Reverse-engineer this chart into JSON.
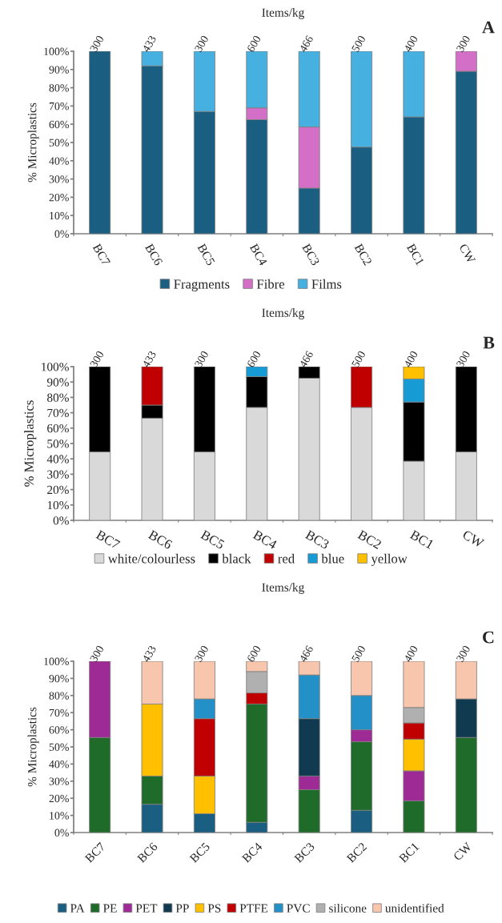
{
  "chart_data": [
    {
      "type": "bar",
      "stacked": true,
      "ylabel": "% Microplastics",
      "x2label": "Items/kg",
      "categories": [
        "BC7",
        "BC6",
        "BC5",
        "BC4",
        "BC3",
        "BC2",
        "BC1",
        "CW"
      ],
      "series": [
        {
          "name": "Fragments",
          "color": "#1a5e82",
          "values": [
            100,
            92,
            67,
            62.5,
            25,
            47.5,
            64,
            89
          ]
        },
        {
          "name": "Fibre",
          "color": "#d36fc6",
          "values": [
            null,
            null,
            null,
            6.5,
            33.5,
            null,
            null,
            11
          ]
        },
        {
          "name": "Films",
          "color": "#46b0e0",
          "values": [
            null,
            8,
            33,
            31,
            41.5,
            52.5,
            36,
            null
          ]
        }
      ],
      "ylim": [
        0,
        100
      ],
      "yticks": [
        {
          "value": 0,
          "label": "0%"
        },
        {
          "value": 10,
          "label": "10%"
        },
        {
          "value": 20,
          "label": "20%"
        },
        {
          "value": 30,
          "label": "30%"
        },
        {
          "value": 40,
          "label": "40%"
        },
        {
          "value": 50,
          "label": "50%"
        },
        {
          "value": 60,
          "label": "60%"
        },
        {
          "value": 70,
          "label": "70%"
        },
        {
          "value": 80,
          "label": "80%"
        },
        {
          "value": 90,
          "label": "90%"
        },
        {
          "value": 100,
          "label": "100%"
        }
      ],
      "grid": false,
      "legend": "bottom",
      "annotations": [
        "A",
        {
          "text": "300",
          "x": "BC7",
          "y": 100
        },
        {
          "text": "433",
          "x": "BC6",
          "y": 100
        },
        {
          "text": "300",
          "x": "BC5",
          "y": 100
        },
        {
          "text": "600",
          "x": "BC4",
          "y": 100
        },
        {
          "text": "466",
          "x": "BC3",
          "y": 100
        },
        {
          "text": "500",
          "x": "BC2",
          "y": 100
        },
        {
          "text": "400",
          "x": "BC1",
          "y": 100
        },
        {
          "text": "300",
          "x": "CW",
          "y": 100
        }
      ]
    },
    {
      "type": "bar",
      "stacked": true,
      "ylabel": "% Microplastics",
      "x2label": "Items/kg",
      "categories": [
        "BC7",
        "BC6",
        "BC5",
        "BC4",
        "BC3",
        "BC2",
        "BC1",
        "CW"
      ],
      "series": [
        {
          "name": "white/colourless",
          "color": "#d9d9d9",
          "values": [
            44.5,
            66.5,
            44.5,
            73.5,
            92.5,
            73.5,
            38.5,
            44.5
          ]
        },
        {
          "name": "black",
          "color": "#000000",
          "values": [
            55.5,
            8.5,
            55.5,
            20,
            7.5,
            null,
            38.5,
            55.5
          ]
        },
        {
          "name": "red",
          "color": "#c00000",
          "values": [
            null,
            25,
            null,
            null,
            null,
            26.5,
            null,
            null
          ]
        },
        {
          "name": "blue",
          "color": "#169bd5",
          "values": [
            null,
            null,
            null,
            6.5,
            null,
            null,
            15,
            null
          ]
        },
        {
          "name": "yellow",
          "color": "#ffc000",
          "values": [
            null,
            null,
            null,
            null,
            null,
            null,
            8,
            null
          ]
        }
      ],
      "ylim": [
        0,
        100
      ],
      "yticks": [
        {
          "value": 0,
          "label": "0%"
        },
        {
          "value": 10,
          "label": "10%"
        },
        {
          "value": 20,
          "label": "20%"
        },
        {
          "value": 30,
          "label": "30%"
        },
        {
          "value": 40,
          "label": "40%"
        },
        {
          "value": 50,
          "label": "50%"
        },
        {
          "value": 60,
          "label": "60%"
        },
        {
          "value": 70,
          "label": "70%"
        },
        {
          "value": 80,
          "label": "80%"
        },
        {
          "value": 90,
          "label": "90%"
        },
        {
          "value": 100,
          "label": "100%"
        }
      ],
      "grid": false,
      "legend": "bottom",
      "annotations": [
        "B",
        {
          "text": "300",
          "x": "BC7",
          "y": 100
        },
        {
          "text": "433",
          "x": "BC6",
          "y": 100
        },
        {
          "text": "300",
          "x": "BC5",
          "y": 100
        },
        {
          "text": "600",
          "x": "BC4",
          "y": 100
        },
        {
          "text": "466",
          "x": "BC3",
          "y": 100
        },
        {
          "text": "500",
          "x": "BC2",
          "y": 100
        },
        {
          "text": "400",
          "x": "BC1",
          "y": 100
        },
        {
          "text": "300",
          "x": "CW",
          "y": 100
        }
      ]
    },
    {
      "type": "bar",
      "stacked": true,
      "ylabel": "% Microplastics",
      "x2label": "Items/kg",
      "categories": [
        "BC7",
        "BC6",
        "BC5",
        "BC4",
        "BC3",
        "BC2",
        "BC1",
        "CW"
      ],
      "series": [
        {
          "name": "PA",
          "color": "#1a5e82",
          "values": [
            null,
            16.5,
            11,
            6,
            null,
            13,
            null,
            null
          ]
        },
        {
          "name": "PE",
          "color": "#1e6b2a",
          "values": [
            55.5,
            16.5,
            null,
            69,
            25,
            40,
            18.5,
            55.5
          ]
        },
        {
          "name": "PET",
          "color": "#9e2a96",
          "values": [
            44.5,
            null,
            null,
            null,
            8,
            7,
            17.5,
            null
          ]
        },
        {
          "name": "PP",
          "color": "#0f3a50",
          "values": [
            null,
            null,
            null,
            null,
            33.5,
            null,
            null,
            22.5
          ]
        },
        {
          "name": "PS",
          "color": "#ffc000",
          "values": [
            null,
            42,
            22,
            null,
            null,
            null,
            18.5,
            null
          ]
        },
        {
          "name": "PTFE",
          "color": "#c00000",
          "values": [
            null,
            null,
            33.5,
            6.5,
            null,
            null,
            9.5,
            null
          ]
        },
        {
          "name": "PVC",
          "color": "#2391c7",
          "values": [
            null,
            null,
            11.5,
            null,
            25.5,
            20,
            null,
            null
          ]
        },
        {
          "name": "silicone",
          "color": "#b0b0b0",
          "values": [
            null,
            null,
            null,
            12.5,
            null,
            null,
            9,
            null
          ]
        },
        {
          "name": "unidentified",
          "color": "#f8c6ad",
          "values": [
            null,
            25,
            22,
            6,
            8,
            20,
            27,
            22
          ]
        }
      ],
      "ylim": [
        0,
        100
      ],
      "yticks": [
        {
          "value": 0,
          "label": "0%"
        },
        {
          "value": 10,
          "label": "10%"
        },
        {
          "value": 20,
          "label": "20%"
        },
        {
          "value": 30,
          "label": "30%"
        },
        {
          "value": 40,
          "label": "40%"
        },
        {
          "value": 50,
          "label": "50%"
        },
        {
          "value": 60,
          "label": "60%"
        },
        {
          "value": 70,
          "label": "70%"
        },
        {
          "value": 80,
          "label": "80%"
        },
        {
          "value": 90,
          "label": "90%"
        },
        {
          "value": 100,
          "label": "100%"
        }
      ],
      "grid": false,
      "legend": "bottom",
      "annotations": [
        "C",
        {
          "text": "300",
          "x": "BC7",
          "y": 100
        },
        {
          "text": "433",
          "x": "BC6",
          "y": 100
        },
        {
          "text": "300",
          "x": "BC5",
          "y": 100
        },
        {
          "text": "600",
          "x": "BC4",
          "y": 100
        },
        {
          "text": "466",
          "x": "BC3",
          "y": 100
        },
        {
          "text": "500",
          "x": "BC2",
          "y": 100
        },
        {
          "text": "400",
          "x": "BC1",
          "y": 100
        },
        {
          "text": "300",
          "x": "CW",
          "y": 100
        }
      ]
    }
  ]
}
